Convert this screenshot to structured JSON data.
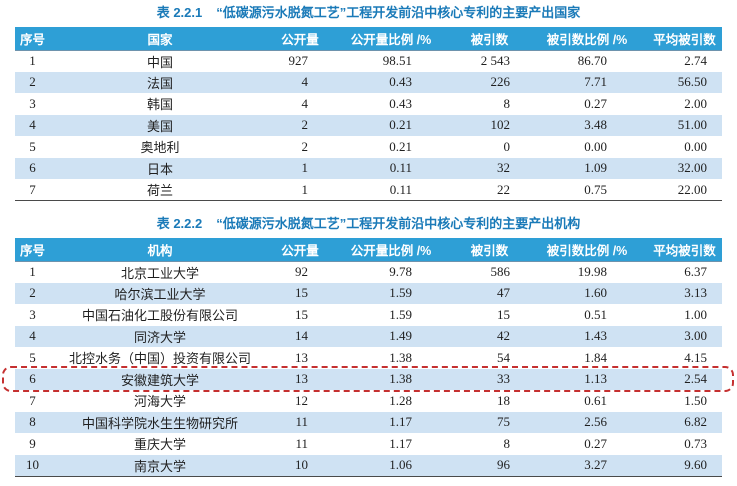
{
  "colors": {
    "header_bg": "#2e9fd6",
    "header_text": "#ffffff",
    "title_text": "#1a7ab8",
    "alt_row_bg": "#cfe2f3",
    "body_text": "#1f1f1f",
    "table_bottom_border": "#4a4a4a",
    "highlight_border": "#c53030"
  },
  "tables": [
    {
      "id": "table-2-2-1",
      "title_label": "表 2.2.1",
      "title_text": "“低碳源污水脱氮工艺”工程开发前沿中核心专利的主要产出国家",
      "columns": [
        "序号",
        "国家",
        "公开量",
        "公开量比例 /%",
        "被引数",
        "被引数比例 /%",
        "平均被引数"
      ],
      "rows": [
        [
          "1",
          "中国",
          "927",
          "98.51",
          "2 543",
          "86.70",
          "2.74"
        ],
        [
          "2",
          "法国",
          "4",
          "0.43",
          "226",
          "7.71",
          "56.50"
        ],
        [
          "3",
          "韩国",
          "4",
          "0.43",
          "8",
          "0.27",
          "2.00"
        ],
        [
          "4",
          "美国",
          "2",
          "0.21",
          "102",
          "3.48",
          "51.00"
        ],
        [
          "5",
          "奥地利",
          "2",
          "0.21",
          "0",
          "0.00",
          "0.00"
        ],
        [
          "6",
          "日本",
          "1",
          "0.11",
          "32",
          "1.09",
          "32.00"
        ],
        [
          "7",
          "荷兰",
          "1",
          "0.11",
          "22",
          "0.75",
          "22.00"
        ]
      ],
      "highlighted_row": null
    },
    {
      "id": "table-2-2-2",
      "title_label": "表 2.2.2",
      "title_text": "“低碳源污水脱氮工艺”工程开发前沿中核心专利的主要产出机构",
      "columns": [
        "序号",
        "机构",
        "公开量",
        "公开量比例 /%",
        "被引数",
        "被引数比例 /%",
        "平均被引数"
      ],
      "rows": [
        [
          "1",
          "北京工业大学",
          "92",
          "9.78",
          "586",
          "19.98",
          "6.37"
        ],
        [
          "2",
          "哈尔滨工业大学",
          "15",
          "1.59",
          "47",
          "1.60",
          "3.13"
        ],
        [
          "3",
          "中国石油化工股份有限公司",
          "15",
          "1.59",
          "15",
          "0.51",
          "1.00"
        ],
        [
          "4",
          "同济大学",
          "14",
          "1.49",
          "42",
          "1.43",
          "3.00"
        ],
        [
          "5",
          "北控水务（中国）投资有限公司",
          "13",
          "1.38",
          "54",
          "1.84",
          "4.15"
        ],
        [
          "6",
          "安徽建筑大学",
          "13",
          "1.38",
          "33",
          "1.13",
          "2.54"
        ],
        [
          "7",
          "河海大学",
          "12",
          "1.28",
          "18",
          "0.61",
          "1.50"
        ],
        [
          "8",
          "中国科学院水生生物研究所",
          "11",
          "1.17",
          "75",
          "2.56",
          "6.82"
        ],
        [
          "9",
          "重庆大学",
          "11",
          "1.17",
          "8",
          "0.27",
          "0.73"
        ],
        [
          "10",
          "南京大学",
          "10",
          "1.06",
          "96",
          "3.27",
          "9.60"
        ]
      ],
      "highlighted_row": 6
    }
  ]
}
